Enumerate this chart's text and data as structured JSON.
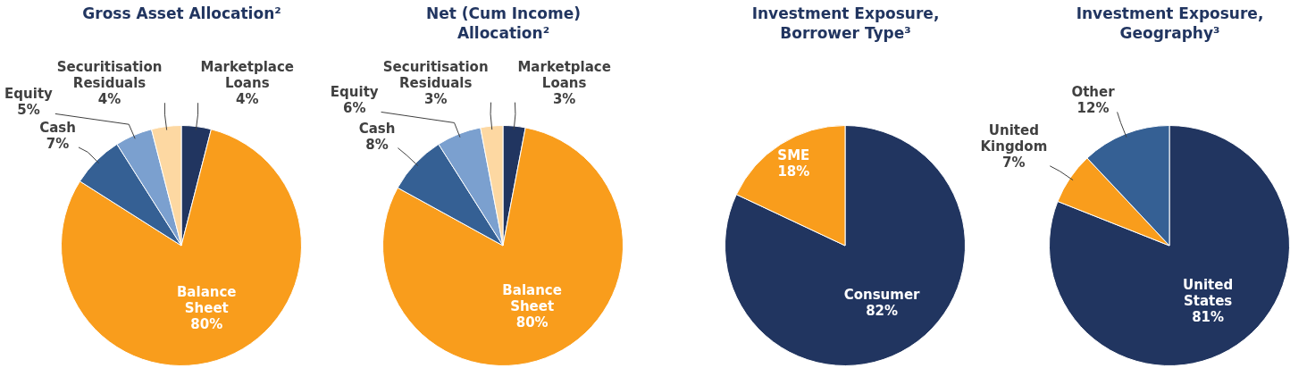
{
  "chart_data": [
    {
      "type": "pie",
      "title": "Gross Asset Allocation²",
      "categories": [
        "Marketplace Loans",
        "Balance Sheet",
        "Cash",
        "Equity",
        "Securitisation Residuals"
      ],
      "values": [
        4,
        80,
        7,
        5,
        4
      ],
      "value_labels": [
        "4%",
        "80%",
        "7%",
        "5%",
        "4%"
      ],
      "colors": [
        "#213560",
        "#f99d1c",
        "#356094",
        "#7ba0cf",
        "#fdd8a2"
      ],
      "legend": false
    },
    {
      "type": "pie",
      "title": "Net (Cum Income) Allocation²",
      "categories": [
        "Marketplace Loans",
        "Balance Sheet",
        "Cash",
        "Equity",
        "Securitisation Residuals"
      ],
      "values": [
        3,
        80,
        8,
        6,
        3
      ],
      "value_labels": [
        "3%",
        "80%",
        "8%",
        "6%",
        "3%"
      ],
      "colors": [
        "#213560",
        "#f99d1c",
        "#356094",
        "#7ba0cf",
        "#fdd8a2"
      ],
      "legend": false
    },
    {
      "type": "pie",
      "title": "Investment Exposure, Borrower Type³",
      "categories": [
        "Consumer",
        "SME"
      ],
      "values": [
        82,
        18
      ],
      "value_labels": [
        "82%",
        "18%"
      ],
      "colors": [
        "#213560",
        "#f99d1c"
      ],
      "legend": false
    },
    {
      "type": "pie",
      "title": "Investment Exposure, Geography³",
      "categories": [
        "United States",
        "United Kingdom",
        "Other"
      ],
      "values": [
        81,
        7,
        12
      ],
      "value_labels": [
        "81%",
        "7%",
        "12%"
      ],
      "colors": [
        "#213560",
        "#f99d1c",
        "#356094"
      ],
      "legend": false
    }
  ]
}
